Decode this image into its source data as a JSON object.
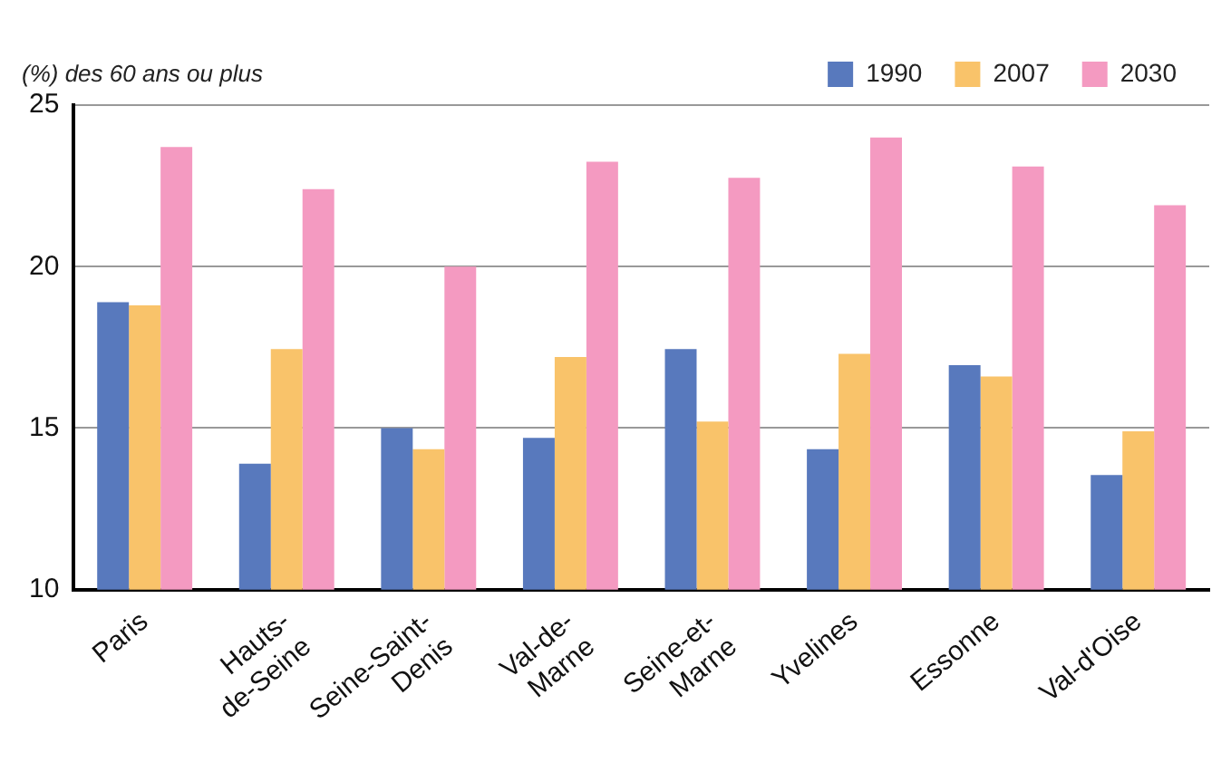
{
  "chart_data": {
    "type": "bar",
    "ylabel": "(%) des 60 ans ou plus",
    "categories": [
      "Paris",
      "Hauts-\nde-Seine",
      "Seine-Saint-\nDenis",
      "Val-de-\nMarne",
      "Seine-et-\nMarne",
      "Yvelines",
      "Essonne",
      "Val-d'Oise"
    ],
    "series": [
      {
        "name": "1990",
        "color": "#5879bd",
        "values": [
          18.9,
          13.9,
          15.0,
          14.7,
          17.45,
          14.35,
          16.95,
          13.55
        ]
      },
      {
        "name": "2007",
        "color": "#f9c36a",
        "values": [
          18.8,
          17.45,
          14.35,
          17.2,
          15.2,
          17.3,
          16.6,
          14.9
        ]
      },
      {
        "name": "2030",
        "color": "#f49ac1",
        "values": [
          23.7,
          22.4,
          20.0,
          23.25,
          22.75,
          24.0,
          23.1,
          21.9
        ]
      }
    ],
    "ylim": [
      10,
      25
    ],
    "yticks": [
      10,
      15,
      20,
      25
    ],
    "grid": "y",
    "legend": "top right"
  }
}
